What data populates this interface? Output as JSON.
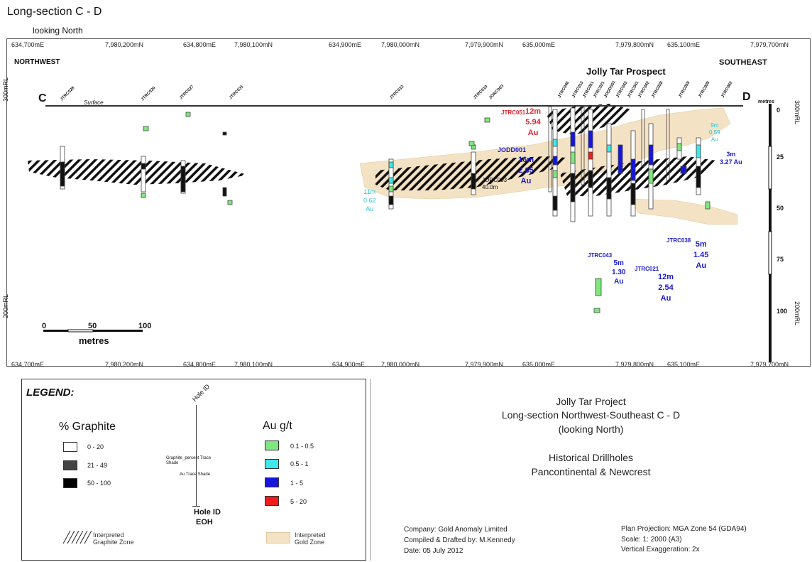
{
  "header": {
    "title": "Long-section C - D",
    "subtitle": "looking North"
  },
  "section": {
    "top_coords": [
      "634,700mE",
      "7,980,200mN",
      "634,800mE",
      "7,980,100mN",
      "634,900mE",
      "7,980,000mN",
      "7,979,900mN",
      "635,000mE",
      "7,979,800mN",
      "635,100mE",
      "7,979,700mN"
    ],
    "bottom_coords": [
      "634,700mE",
      "7,980,200mN",
      "634,800mE",
      "7,980,100mN",
      "634,900mE",
      "7,980,000mN",
      "7,979,900mN",
      "635,000mE",
      "7,979,800mN",
      "635,100mE",
      "7,979,700mN"
    ],
    "northwest": "NORTHWEST",
    "southeast": "SOUTHEAST",
    "prospect": "Jolly Tar Prospect",
    "c_label": "C",
    "d_label": "D",
    "surface": "Surface",
    "rl_300_left": "300mRL",
    "rl_200_left": "200mRL",
    "rl_300_right": "300mRL",
    "rl_200_right": "200mRL",
    "depth_unit": "metres",
    "depth_ticks": [
      "0",
      "25",
      "50",
      "75",
      "100"
    ],
    "scale_ticks": [
      "0",
      "50",
      "100"
    ],
    "scale_unit": "metres",
    "intercepts": [
      {
        "hole": "JTRC051",
        "lines": [
          "12m",
          "5.94",
          "Au"
        ],
        "color": "#e8202a"
      },
      {
        "hole": "JODD001",
        "lines": [
          "16m",
          "2.65",
          "Au"
        ],
        "color": "#1a1ad0"
      },
      {
        "hole": "JTRC043",
        "lines": [
          "5m",
          "1.30",
          "Au"
        ],
        "color": "#1a1ad0"
      },
      {
        "hole": "JTRC021",
        "lines": [
          "12m",
          "2.54",
          "Au"
        ],
        "color": "#1a1ad0"
      },
      {
        "hole": "JTRC038",
        "lines": [
          "5m",
          "1.45",
          "Au"
        ],
        "color": "#1a1ad0"
      },
      {
        "hole": "",
        "lines": [
          "3m",
          "3.27 Au"
        ],
        "color": "#1a1ad0"
      },
      {
        "hole": "",
        "lines": [
          "11m",
          "0.62",
          "Au"
        ],
        "color": "#27c4d8"
      },
      {
        "hole": "",
        "lines": [
          "9m",
          "0.59",
          "Au"
        ],
        "color": "#27c4d8"
      }
    ],
    "hole_labels": {
      "jorc003": "JORC003",
      "jorc003_depth": "40.0m"
    }
  },
  "legend": {
    "title": "LEGEND:",
    "graphite_title": "% Graphite",
    "graphite_items": [
      "0 - 20",
      "21 - 49",
      "50 - 100"
    ],
    "au_title": "Au g/t",
    "au_items": [
      "0.1 - 0.5",
      "0.5 - 1",
      "1 - 5",
      "5 - 20"
    ],
    "au_colors": [
      "#7ee87e",
      "#3fe8e8",
      "#1616e0",
      "#ee1c1c"
    ],
    "hole_id_top": "Hole ID",
    "graphite_trace": "Graphite_percent Trace Shade",
    "au_trace": "Au Trace Shade",
    "hole_id_bottom": "Hole ID",
    "eoh": "EOH",
    "interp_graphite": "Interpreted Graphite Zone",
    "interp_gold": "Interpreted Gold Zone",
    "gold_zone_color": "#f4e2c4"
  },
  "info": {
    "line1": "Jolly Tar Project",
    "line2": "Long-section Northwest-Southeast  C  -  D",
    "line3": "(looking North)",
    "line4": "Historical Drillholes",
    "line5": "Pancontinental & Newcrest",
    "company": "Company: Gold Anomaly Limited",
    "compiled": "Compiled & Drafted by: M.Kennedy",
    "date": "Date: 05 July 2012",
    "projection": "Plan Projection: MGA Zone 54 (GDA94)",
    "scale": "Scale: 1: 2000 (A3)",
    "vex": "Vertical Exaggeration: 2x"
  }
}
